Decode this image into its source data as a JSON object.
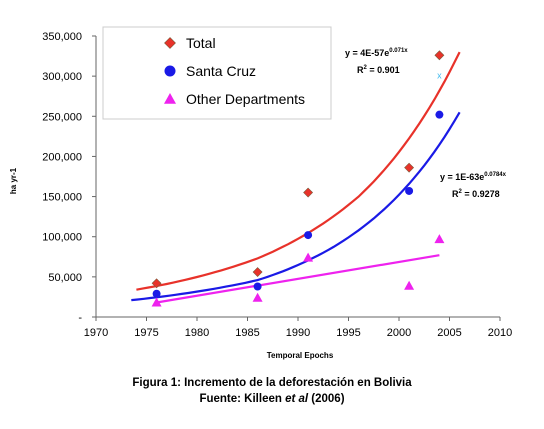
{
  "chart_data": {
    "type": "scatter",
    "xlabel": "Temporal Epochs",
    "ylabel": "ha yr-1",
    "xlim": [
      1970,
      2010
    ],
    "ylim": [
      0,
      350000
    ],
    "x_ticks": [
      "1970",
      "1975",
      "1980",
      "1985",
      "1990",
      "1995",
      "2000",
      "2005",
      "2010"
    ],
    "y_ticks": [
      "-",
      "50,000",
      "100,000",
      "150,000",
      "200,000",
      "250,000",
      "300,000",
      "350,000"
    ],
    "grid": false,
    "legend_position": "top-left",
    "series": [
      {
        "name": "Total",
        "color": "#e8322a",
        "marker": "diamond",
        "points": [
          [
            1976,
            42000
          ],
          [
            1986,
            56000
          ],
          [
            1991,
            155000
          ],
          [
            2001,
            186000
          ],
          [
            2004,
            326000
          ]
        ],
        "trend": {
          "type": "exponential",
          "x_range": [
            1974,
            2006
          ],
          "fit_points": [
            [
              1974,
              34000
            ],
            [
              1986,
              73000
            ],
            [
              1996,
              150000
            ],
            [
              2006,
              330000
            ]
          ]
        }
      },
      {
        "name": "Santa Cruz",
        "color": "#1a1ae6",
        "marker": "circle",
        "points": [
          [
            1976,
            29000
          ],
          [
            1986,
            38000
          ],
          [
            1991,
            102000
          ],
          [
            2001,
            157000
          ],
          [
            2004,
            252000
          ]
        ],
        "trend": {
          "type": "exponential",
          "x_range": [
            1973.5,
            2006
          ],
          "fit_points": [
            [
              1973.5,
              21000
            ],
            [
              1986,
              46000
            ],
            [
              1996,
              108000
            ],
            [
              2006,
              255000
            ]
          ]
        }
      },
      {
        "name": "Other Departments",
        "color": "#ee22ee",
        "marker": "triangle",
        "points": [
          [
            1976,
            18000
          ],
          [
            1986,
            24000
          ],
          [
            1991,
            74000
          ],
          [
            2001,
            39000
          ],
          [
            2004,
            97000
          ]
        ],
        "trend": {
          "type": "linear",
          "x_range": [
            1976,
            2004
          ],
          "fit_points": [
            [
              1976,
              18000
            ],
            [
              2004,
              77000
            ]
          ]
        }
      }
    ],
    "extra_marks": [
      {
        "label": "x",
        "x": 2004,
        "y": 301000,
        "color": "#44bbee"
      }
    ],
    "annotations": [
      {
        "id": "total",
        "text": "y = 4E-57e",
        "exponent": "0.071x",
        "r2_label": "R",
        "r2_sup": "2",
        "r2_value": " = 0.901"
      },
      {
        "id": "santa_cruz",
        "text": "y = 1E-63e",
        "exponent": "0.0784x",
        "r2_label": "R",
        "r2_sup": "2",
        "r2_value": " = 0.9278"
      }
    ]
  },
  "caption": {
    "title": "Figura 1: Incremento de la deforestación en Bolivia",
    "source_prefix": "Fuente: Killeen ",
    "source_italic": "et al",
    "source_suffix": " (2006)"
  }
}
